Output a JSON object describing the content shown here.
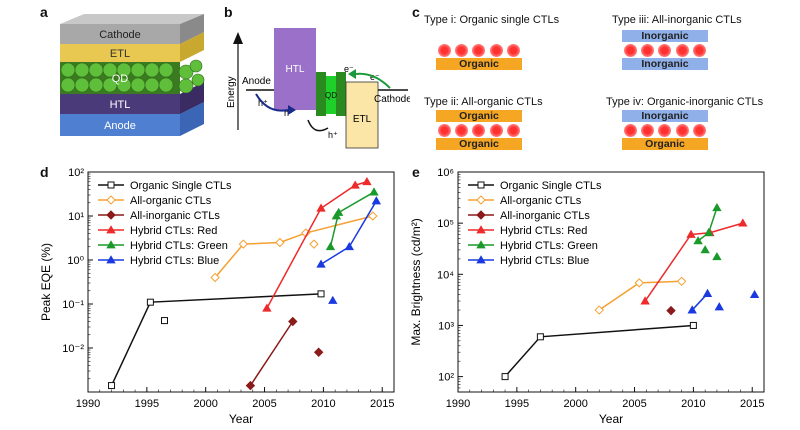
{
  "panel_labels": {
    "a": "a",
    "b": "b",
    "c": "c",
    "d": "d",
    "e": "e"
  },
  "panel_a": {
    "layers": [
      "Cathode",
      "ETL",
      "QD",
      "HTL",
      "Anode"
    ]
  },
  "panel_b": {
    "energy_label": "Energy",
    "anode": "Anode",
    "cathode": "Cathode",
    "htl": "HTL",
    "qd": "QD",
    "etl": "ETL",
    "electron": "e⁻",
    "hole": "h⁺"
  },
  "panel_c": {
    "types": [
      {
        "title": "Type i: Organic single CTLs",
        "layers": [
          "Organic"
        ]
      },
      {
        "title": "Type iii: All-inorganic CTLs",
        "layers": [
          "Inorganic",
          "Inorganic"
        ]
      },
      {
        "title": "Type ii: All-organic CTLs",
        "layers": [
          "Organic",
          "Organic"
        ]
      },
      {
        "title": "Type iv: Organic-inorganic CTLs",
        "layers": [
          "Inorganic",
          "Organic"
        ]
      }
    ]
  },
  "colors": {
    "black": "#111111",
    "orange": "#f5a030",
    "darkred": "#8b1a1a",
    "red": "#ee2a2a",
    "green": "#1a9a2a",
    "blue": "#1a3ae0",
    "organic": "#f5a623",
    "inorganic": "#8fb0e8"
  },
  "chart_data": [
    {
      "type": "line",
      "panel": "d",
      "log_y": true,
      "xlabel": "Year",
      "ylabel": "Peak EQE (%)",
      "xlim": [
        1990,
        2016
      ],
      "ylim": [
        0.001,
        100
      ],
      "x_ticks": [
        1990,
        1995,
        2000,
        2005,
        2010,
        2015
      ],
      "y_tick_labels": [
        "10⁻²",
        "10⁻¹",
        "10⁰",
        "10¹",
        "10²"
      ],
      "y_tick_values": [
        0.01,
        0.1,
        1,
        10,
        100
      ],
      "series": [
        {
          "name": "Organic Single CTLs",
          "color": "black",
          "marker": "square",
          "lines": [
            [
              [
                1992,
                0.0014
              ],
              [
                1995.3,
                0.11
              ],
              [
                2009.8,
                0.17
              ]
            ]
          ],
          "points": [
            [
              1996.5,
              0.042
            ]
          ]
        },
        {
          "name": "All-organic CTLs",
          "color": "orange",
          "marker": "diamond",
          "lines": [
            [
              [
                2000.8,
                0.4
              ],
              [
                2003.2,
                2.3
              ],
              [
                2006.3,
                2.5
              ],
              [
                2008.5,
                4.1
              ],
              [
                2014.2,
                10
              ]
            ]
          ],
          "points": [
            [
              2009.2,
              2.3
            ]
          ]
        },
        {
          "name": "All-inorganic CTLs",
          "color": "darkred",
          "marker": "diamond",
          "lines": [
            [
              [
                2003.8,
                0.0014
              ],
              [
                2007.4,
                0.04
              ]
            ]
          ],
          "points": [
            [
              2009.6,
              0.008
            ]
          ]
        },
        {
          "name": "Hybrid CTLs: Red",
          "color": "red",
          "marker": "triangle",
          "lines": [
            [
              [
                2005.2,
                0.08
              ],
              [
                2009.8,
                15
              ],
              [
                2012.7,
                50
              ],
              [
                2013.7,
                60
              ]
            ]
          ],
          "points": []
        },
        {
          "name": "Hybrid CTLs: Green",
          "color": "green",
          "marker": "triangle",
          "lines": [
            [
              [
                2010.6,
                2
              ],
              [
                2011.3,
                12
              ],
              [
                2014.3,
                35
              ]
            ]
          ],
          "points": [
            [
              2011.1,
              10
            ]
          ]
        },
        {
          "name": "Hybrid CTLs: Blue",
          "color": "blue",
          "marker": "triangle",
          "lines": [
            [
              [
                2009.8,
                0.8
              ],
              [
                2012.2,
                2
              ],
              [
                2014.5,
                22
              ]
            ]
          ],
          "points": [
            [
              2010.8,
              0.12
            ]
          ]
        }
      ]
    },
    {
      "type": "line",
      "panel": "e",
      "log_y": true,
      "xlabel": "Year",
      "ylabel": "Max. Brightness (cd/m²)",
      "xlim": [
        1990,
        2016
      ],
      "ylim": [
        50,
        1000000
      ],
      "x_ticks": [
        1990,
        1995,
        2000,
        2005,
        2010,
        2015
      ],
      "y_tick_labels": [
        "10²",
        "10³",
        "10⁴",
        "10⁵",
        "10⁶"
      ],
      "y_tick_values": [
        100,
        1000,
        10000,
        100000,
        1000000
      ],
      "series": [
        {
          "name": "Organic Single CTLs",
          "color": "black",
          "marker": "square",
          "lines": [
            [
              [
                1994,
                100
              ],
              [
                1997,
                600
              ],
              [
                2010,
                1000
              ]
            ]
          ],
          "points": []
        },
        {
          "name": "All-organic CTLs",
          "color": "orange",
          "marker": "diamond",
          "lines": [
            [
              [
                2002,
                2000
              ],
              [
                2005.4,
                6800
              ],
              [
                2009,
                7300
              ]
            ]
          ],
          "points": []
        },
        {
          "name": "All-inorganic CTLs",
          "color": "darkred",
          "marker": "diamond",
          "lines": [],
          "points": [
            [
              2008.1,
              1950
            ]
          ]
        },
        {
          "name": "Hybrid CTLs: Red",
          "color": "red",
          "marker": "triangle",
          "lines": [
            [
              [
                2005.9,
                3000
              ],
              [
                2009.8,
                60000
              ],
              [
                2011.4,
                65000
              ],
              [
                2014.2,
                100000
              ]
            ]
          ],
          "points": []
        },
        {
          "name": "Hybrid CTLs: Green",
          "color": "green",
          "marker": "triangle",
          "lines": [
            [
              [
                2010.4,
                45000
              ],
              [
                2011.3,
                65000
              ],
              [
                2012,
                200000
              ]
            ]
          ],
          "points": [
            [
              2011,
              30000
            ],
            [
              2012,
              22000
            ]
          ]
        },
        {
          "name": "Hybrid CTLs: Blue",
          "color": "blue",
          "marker": "triangle",
          "lines": [
            [
              [
                2009.9,
                2000
              ],
              [
                2011.2,
                4200
              ]
            ]
          ],
          "points": [
            [
              2012.2,
              2300
            ],
            [
              2015.2,
              4000
            ]
          ]
        }
      ]
    }
  ]
}
